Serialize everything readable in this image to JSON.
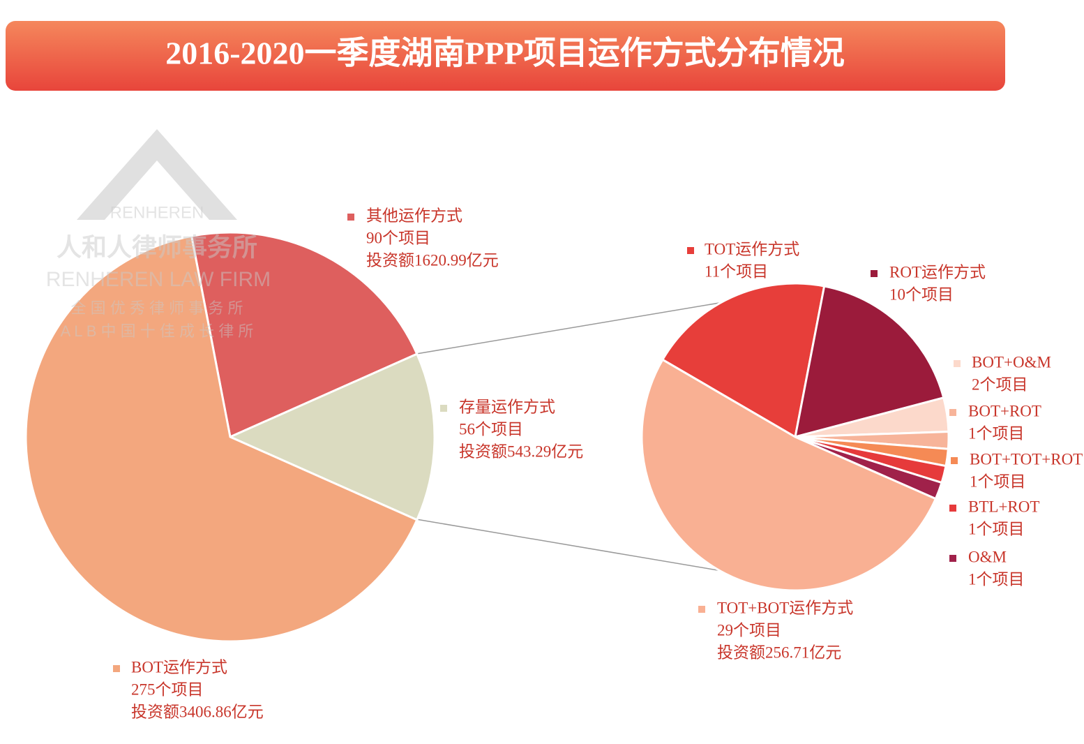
{
  "header": {
    "title": "2016-2020一季度湖南PPP项目运作方式分布情况"
  },
  "watermark": {
    "lines": [
      "RENHEREN",
      "人和人律师事务所",
      "RENHEREN LAW FIRM",
      "全 国 优 秀 律 师 事 务 所",
      "A L B 中 国 十 佳 成 长 律 所"
    ]
  },
  "chart_data": [
    {
      "type": "pie",
      "categories": [
        "其他运作方式",
        "存量运作方式",
        "BOT运作方式"
      ],
      "values": [
        90,
        56,
        275
      ],
      "value_labels": [
        "90个项目",
        "56个项目",
        "275个项目"
      ],
      "investments": [
        "投资额1620.99亿元",
        "投资额543.29亿元",
        "投资额3406.86亿元"
      ],
      "colors": [
        "#DE5F5E",
        "#DBDBC0",
        "#F3A77E"
      ]
    },
    {
      "type": "pie",
      "categories": [
        "TOT运作方式",
        "ROT运作方式",
        "BOT+O&M",
        "BOT+ROT",
        "BOT+TOT+ROT",
        "BTL+ROT",
        "O&M",
        "TOT+BOT运作方式"
      ],
      "values": [
        11,
        10,
        2,
        1,
        1,
        1,
        1,
        29
      ],
      "value_labels": [
        "11个项目",
        "10个项目",
        "2个项目",
        "1个项目",
        "1个项目",
        "1个项目",
        "1个项目",
        "29个项目"
      ],
      "investments": [
        null,
        null,
        null,
        null,
        null,
        null,
        null,
        "投资额256.71亿元"
      ],
      "colors": [
        "#E73E3A",
        "#9B1B3B",
        "#FCD9CB",
        "#F7B49A",
        "#F58A55",
        "#E63A3B",
        "#A0214A",
        "#F9B093"
      ]
    }
  ]
}
